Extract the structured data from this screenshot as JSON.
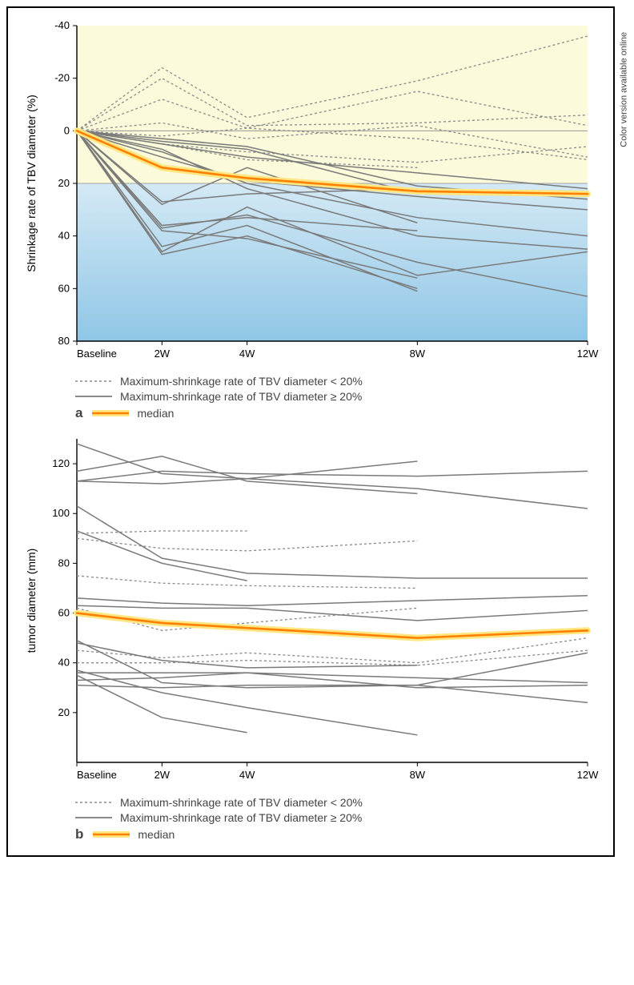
{
  "side_note": "Color version available online",
  "shared": {
    "x_categories": [
      "Baseline",
      "2W",
      "4W",
      "8W",
      "12W"
    ],
    "x_positions": [
      0,
      2,
      4,
      8,
      12
    ],
    "line_color_solid": "#7a7a7a",
    "line_color_dotted": "#8a8a8a",
    "median_stroke": "#ff7f00",
    "median_glow": "#ffe680",
    "axis_color": "#000000",
    "grid_color": "#888888",
    "label_fontsize": 14,
    "tick_fontsize": 13,
    "legend_fontsize": 14,
    "legend": {
      "dotted": "Maximum-shrinkage rate of TBV diameter < 20%",
      "solid": "Maximum-shrinkage rate of TBV diameter ≥ 20%",
      "median": "median"
    }
  },
  "panel_a": {
    "label": "a",
    "ylabel": "Shrinkage rate of TBV diameter  (%)",
    "ylim": [
      -40,
      80
    ],
    "yticks": [
      -40,
      -20,
      0,
      20,
      40,
      60,
      80
    ],
    "ytick_labels": [
      "-40",
      "-20",
      "0",
      "20",
      "40",
      "60",
      "80"
    ],
    "bg_upper_color": "#fbfada",
    "bg_lower_top": "#d4e9f5",
    "bg_lower_bottom": "#8fc6e6",
    "shade_split_y": 20,
    "zero_line_y": 0,
    "median": [
      0,
      14,
      18,
      23,
      24
    ],
    "dotted_series": [
      [
        0,
        -24,
        -5,
        -19,
        -36
      ],
      [
        0,
        -20,
        -2,
        -3,
        -6
      ],
      [
        0,
        -12,
        -1,
        -15,
        -2
      ],
      [
        0,
        -3,
        3,
        -2,
        10
      ],
      [
        0,
        2,
        -1,
        3,
        11
      ],
      [
        0,
        5,
        11,
        14,
        null
      ],
      [
        0,
        5,
        8,
        12,
        6
      ]
    ],
    "solid_series": [
      [
        0,
        3,
        6,
        21,
        26
      ],
      [
        0,
        4,
        7,
        24,
        null
      ],
      [
        0,
        5,
        10,
        16,
        22
      ],
      [
        0,
        7,
        22,
        40,
        45
      ],
      [
        0,
        27,
        24,
        22,
        null
      ],
      [
        0,
        28,
        14,
        35,
        null
      ],
      [
        0,
        36,
        33,
        38,
        null
      ],
      [
        0,
        37,
        32,
        50,
        63
      ],
      [
        0,
        38,
        41,
        56,
        null
      ],
      [
        0,
        44,
        36,
        61,
        null
      ],
      [
        0,
        46,
        29,
        55,
        46
      ],
      [
        0,
        47,
        40,
        60,
        null
      ],
      [
        0,
        8,
        20,
        33,
        40
      ],
      [
        0,
        10,
        19,
        25,
        30
      ]
    ]
  },
  "panel_b": {
    "label": "b",
    "ylabel": "tumor diameter (mm)",
    "ylim": [
      0,
      130
    ],
    "yticks": [
      20,
      40,
      60,
      80,
      100,
      120
    ],
    "median": [
      60,
      56,
      54,
      50,
      53
    ],
    "dotted_series": [
      [
        92,
        93,
        93,
        null,
        null
      ],
      [
        90,
        86,
        85,
        89,
        null
      ],
      [
        75,
        72,
        71,
        70,
        null
      ],
      [
        62,
        53,
        56,
        62,
        null
      ],
      [
        45,
        42,
        44,
        40,
        50
      ],
      [
        40,
        40,
        41,
        39,
        45
      ]
    ],
    "solid_series": [
      [
        128,
        116,
        114,
        121,
        null
      ],
      [
        117,
        123,
        113,
        108,
        null
      ],
      [
        113,
        117,
        116,
        115,
        117
      ],
      [
        113,
        112,
        114,
        110,
        102
      ],
      [
        103,
        82,
        76,
        74,
        74
      ],
      [
        93,
        80,
        73,
        null,
        null
      ],
      [
        66,
        64,
        63,
        65,
        67
      ],
      [
        63,
        62,
        62,
        57,
        61
      ],
      [
        60,
        56,
        54,
        50,
        53
      ],
      [
        48,
        41,
        38,
        39,
        null
      ],
      [
        49,
        32,
        30,
        31,
        44
      ],
      [
        37,
        28,
        22,
        11,
        null
      ],
      [
        36,
        36,
        36,
        30,
        31
      ],
      [
        35,
        18,
        12,
        null,
        null
      ],
      [
        31,
        30,
        31,
        31,
        24
      ],
      [
        33,
        34,
        36,
        34,
        32
      ]
    ]
  }
}
